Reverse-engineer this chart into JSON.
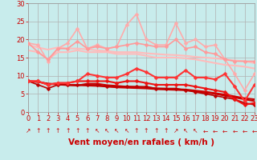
{
  "background_color": "#c8ecec",
  "grid_color": "#b0b0b0",
  "xlabel": "Vent moyen/en rafales ( km/h )",
  "ylim": [
    0,
    30
  ],
  "xlim": [
    0,
    23
  ],
  "yticks": [
    0,
    5,
    10,
    15,
    20,
    25,
    30
  ],
  "xticks": [
    0,
    1,
    2,
    3,
    4,
    5,
    6,
    7,
    8,
    9,
    10,
    11,
    12,
    13,
    14,
    15,
    16,
    17,
    18,
    19,
    20,
    21,
    22,
    23
  ],
  "lines": [
    {
      "comment": "light pink straight line top - slowly decreasing ~18 to 13",
      "y": [
        18.5,
        17.8,
        17.2,
        17.8,
        17.5,
        17.5,
        17.3,
        17.0,
        16.8,
        16.5,
        16.5,
        16.5,
        16.2,
        16.0,
        15.8,
        15.7,
        15.5,
        15.2,
        15.0,
        14.8,
        14.5,
        14.2,
        14.0,
        13.5
      ],
      "color": "#ffbbbb",
      "lw": 1.5,
      "marker": null,
      "zorder": 2
    },
    {
      "comment": "light pink straight line 2nd - slowly decreasing ~17 to 12",
      "y": [
        17.0,
        16.5,
        14.5,
        16.5,
        16.5,
        17.0,
        16.5,
        16.5,
        16.5,
        16.0,
        16.0,
        16.0,
        15.5,
        15.0,
        15.0,
        15.0,
        14.8,
        14.5,
        14.0,
        13.5,
        13.0,
        12.8,
        12.5,
        12.0
      ],
      "color": "#ffbbbb",
      "lw": 1.5,
      "marker": null,
      "zorder": 2
    },
    {
      "comment": "light pink line with markers - spiky upper line peaking at 27",
      "y": [
        19.0,
        18.5,
        14.0,
        17.5,
        19.0,
        23.0,
        17.5,
        18.5,
        17.5,
        18.0,
        24.0,
        27.0,
        20.0,
        18.5,
        18.5,
        24.5,
        19.0,
        20.0,
        18.0,
        18.5,
        14.5,
        10.5,
        6.0,
        10.5
      ],
      "color": "#ffaaaa",
      "lw": 1.2,
      "marker": "D",
      "ms": 2.5,
      "zorder": 3
    },
    {
      "comment": "medium pink with markers - second spiky line ~14-20",
      "y": [
        19.0,
        16.5,
        14.5,
        17.5,
        17.5,
        19.5,
        17.5,
        18.0,
        17.5,
        18.0,
        18.5,
        19.0,
        18.5,
        18.0,
        18.0,
        20.0,
        17.5,
        18.0,
        16.5,
        16.0,
        14.5,
        14.0,
        14.0,
        14.0
      ],
      "color": "#ff9999",
      "lw": 1.2,
      "marker": "D",
      "ms": 2.5,
      "zorder": 3
    },
    {
      "comment": "bright red with markers - middle spiky ~8-12",
      "y": [
        8.5,
        8.5,
        7.5,
        8.0,
        8.0,
        8.5,
        10.5,
        10.0,
        9.5,
        9.5,
        10.5,
        12.0,
        11.0,
        9.5,
        9.5,
        9.5,
        11.5,
        9.5,
        9.5,
        9.0,
        10.5,
        7.0,
        3.0,
        7.5
      ],
      "color": "#ff3333",
      "lw": 1.5,
      "marker": "D",
      "ms": 2.5,
      "zorder": 5
    },
    {
      "comment": "dark red straight line top - ~8 to 3",
      "y": [
        8.5,
        8.3,
        7.8,
        7.7,
        7.5,
        7.4,
        7.3,
        7.2,
        7.0,
        6.8,
        6.7,
        6.6,
        6.5,
        6.3,
        6.2,
        6.1,
        6.0,
        5.7,
        5.4,
        5.0,
        4.5,
        4.0,
        3.5,
        3.0
      ],
      "color": "#cc0000",
      "lw": 1.5,
      "marker": null,
      "zorder": 2
    },
    {
      "comment": "dark red straight line 2nd - ~8 to 3.5",
      "y": [
        8.5,
        8.3,
        7.8,
        7.6,
        7.4,
        7.3,
        7.8,
        7.8,
        7.4,
        7.2,
        7.0,
        6.9,
        6.8,
        6.5,
        6.4,
        6.3,
        6.2,
        5.9,
        5.6,
        5.2,
        4.8,
        4.3,
        3.8,
        3.5
      ],
      "color": "#cc0000",
      "lw": 1.5,
      "marker": null,
      "zorder": 2
    },
    {
      "comment": "dark red with markers lower - ~8 to 2",
      "y": [
        8.5,
        7.5,
        6.5,
        7.5,
        7.5,
        7.5,
        7.5,
        7.5,
        7.0,
        7.0,
        7.0,
        7.0,
        7.0,
        6.5,
        6.5,
        6.5,
        6.0,
        5.5,
        5.0,
        4.5,
        4.0,
        3.5,
        2.5,
        2.0
      ],
      "color": "#bb0000",
      "lw": 1.2,
      "marker": "D",
      "ms": 2.5,
      "zorder": 4
    },
    {
      "comment": "bright red lower markers - ~8.5 to 2",
      "y": [
        8.5,
        8.5,
        7.5,
        8.0,
        8.0,
        8.5,
        8.5,
        8.5,
        8.5,
        8.0,
        8.5,
        8.5,
        8.0,
        7.5,
        7.5,
        7.5,
        7.5,
        7.0,
        6.5,
        6.0,
        5.5,
        3.5,
        2.0,
        2.5
      ],
      "color": "#ee1111",
      "lw": 1.5,
      "marker": "D",
      "ms": 2.5,
      "zorder": 4
    }
  ],
  "wind_dirs": [
    "NE",
    "N",
    "N",
    "N",
    "N",
    "N",
    "N",
    "NW",
    "NW",
    "NW",
    "NW",
    "N",
    "N",
    "N",
    "N",
    "NE",
    "NW",
    "NW",
    "W",
    "W",
    "W",
    "W",
    "W",
    "W"
  ],
  "tick_fontsize": 6,
  "label_fontsize": 7.5
}
